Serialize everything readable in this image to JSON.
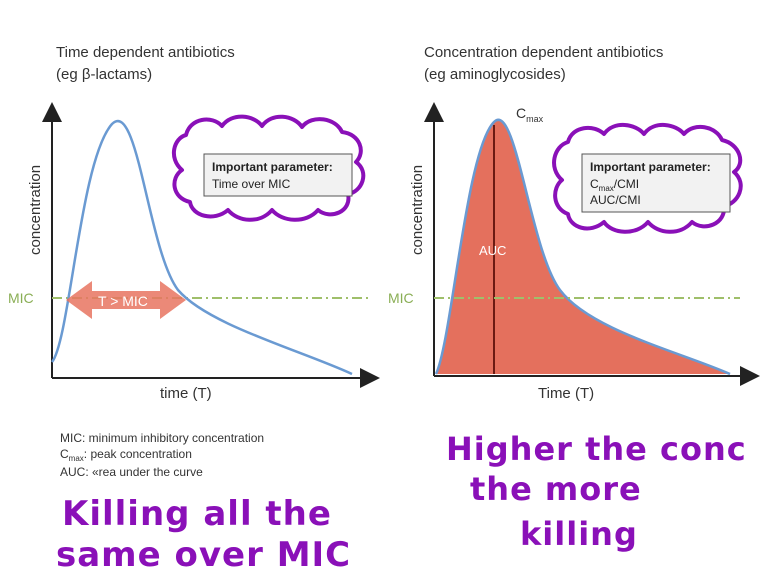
{
  "left_panel": {
    "title_line1": "Time dependent antibiotics",
    "title_line2": "(eg β-lactams)",
    "y_label": "concentration",
    "x_label": "time (T)",
    "mic_label": "MIC",
    "arrow_label": "T > MIC",
    "box_heading": "Important parameter:",
    "box_line1": "Time over MIC"
  },
  "right_panel": {
    "title_line1": "Concentration dependent antibiotics",
    "title_line2": "(eg aminoglycosides)",
    "y_label": "concentration",
    "x_label": "Time (T)",
    "mic_label": "MIC",
    "cmax_main": "C",
    "cmax_sub": "max",
    "auc_label": "AUC",
    "box_heading": "Important parameter:",
    "box_line1_main": "C",
    "box_line1_sub": "max",
    "box_line1_rest": "/CMI",
    "box_line2": "AUC/CMI"
  },
  "legend": {
    "line1": "MIC: minimum inhibitory concentration",
    "line2_main": "C",
    "line2_sub": "max",
    "line2_rest": ": peak concentration",
    "line3": "AUC: «rea under the curve"
  },
  "handwriting": {
    "left_line1": "Killing all the",
    "left_line2": "same over MIC",
    "right_line1": "Higher the conc",
    "right_line2": "the more",
    "right_line3": "killing"
  },
  "colors": {
    "curve": "#6a9ad2",
    "auc_fill": "#e4705d",
    "mic_line": "#9fbf6a",
    "arrow": "#e87460",
    "scribble": "#8a10b8"
  }
}
